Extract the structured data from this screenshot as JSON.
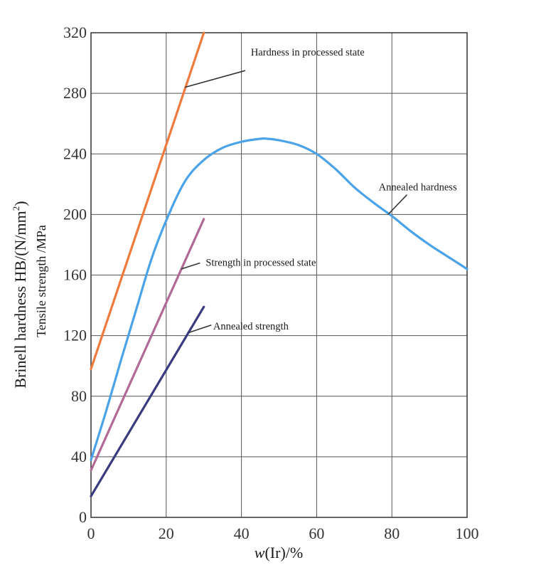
{
  "chart_data": {
    "type": "line",
    "title": "",
    "xlabel_main": "w",
    "xlabel_rest": "(Ir)/%",
    "ylabel_primary_main": "Brinell hardness HB/(N/mm",
    "ylabel_primary_sup": "2",
    "ylabel_primary_close": ")",
    "ylabel_secondary": "Tensile strength /MPa",
    "xlim": [
      0,
      100
    ],
    "ylim": [
      0,
      320
    ],
    "x_ticks": [
      0,
      20,
      40,
      60,
      80,
      100
    ],
    "y_ticks": [
      0,
      40,
      80,
      120,
      160,
      200,
      240,
      280,
      320
    ],
    "x_grid": [
      0,
      20,
      40,
      60,
      80,
      100
    ],
    "y_grid": [
      0,
      40,
      80,
      120,
      160,
      200,
      240,
      280,
      320
    ],
    "grid": true,
    "series": [
      {
        "name": "Hardness in processed state",
        "color": "#f07a3c",
        "x": [
          0,
          30
        ],
        "y": [
          98,
          320
        ]
      },
      {
        "name": "Annealed hardness",
        "color": "#4aa3e8",
        "x": [
          0,
          4,
          8,
          12,
          16,
          20,
          25,
          30,
          35,
          40,
          45,
          47,
          50,
          55,
          60,
          65,
          70,
          75,
          80,
          85,
          90,
          95,
          100
        ],
        "y": [
          38,
          70,
          104,
          137,
          170,
          196,
          222,
          236,
          244,
          248,
          250,
          250,
          249,
          246,
          240,
          230,
          218,
          208,
          199,
          189,
          180,
          172,
          164
        ]
      },
      {
        "name": "Strength in processed state",
        "color": "#b06a95",
        "x": [
          0,
          30
        ],
        "y": [
          31,
          197
        ]
      },
      {
        "name": "Annealed strength",
        "color": "#3a3a7e",
        "x": [
          0,
          30
        ],
        "y": [
          14,
          139
        ]
      }
    ],
    "annotations": [
      {
        "text": "Hardness in processed state",
        "x": 42.5,
        "y": 305,
        "pointer_from": [
          41,
          295
        ],
        "pointer_to": [
          25,
          284
        ]
      },
      {
        "text": "Annealed hardness",
        "x": 76.5,
        "y": 216,
        "pointer_from": [
          84,
          213
        ],
        "pointer_to": [
          79,
          200
        ]
      },
      {
        "text": "Strength in processed state",
        "x": 30.5,
        "y": 166,
        "pointer_from": [
          29,
          168
        ],
        "pointer_to": [
          24,
          164
        ]
      },
      {
        "text": "Annealed strength",
        "x": 32.5,
        "y": 124,
        "pointer_from": [
          32,
          127
        ],
        "pointer_to": [
          26,
          122
        ]
      }
    ]
  }
}
